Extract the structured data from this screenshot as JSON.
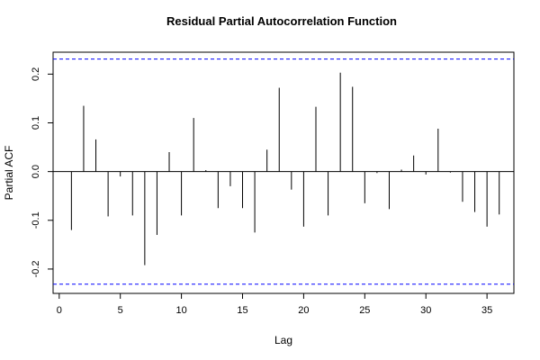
{
  "chart_data": {
    "type": "bar",
    "title": "Residual Partial Autocorrelation Function",
    "xlabel": "Lag",
    "ylabel": "Partial ACF",
    "xlim": [
      -0.5,
      37.2
    ],
    "ylim": [
      -0.25,
      0.245
    ],
    "xticks": [
      0,
      5,
      10,
      15,
      20,
      25,
      30,
      35
    ],
    "yticks": [
      -0.2,
      -0.1,
      0.0,
      0.1,
      0.2
    ],
    "ytick_labels": [
      "-0.2",
      "-0.1",
      "0.0",
      "0.1",
      "0.2"
    ],
    "confidence_bound": 0.231,
    "confidence_color": "#0000ff",
    "grid": false,
    "lags": [
      1,
      2,
      3,
      4,
      5,
      6,
      7,
      8,
      9,
      10,
      11,
      12,
      13,
      14,
      15,
      16,
      17,
      18,
      19,
      20,
      21,
      22,
      23,
      24,
      25,
      26,
      27,
      28,
      29,
      30,
      31,
      32,
      33,
      34,
      35,
      36
    ],
    "values": [
      -0.12,
      0.135,
      0.066,
      -0.092,
      -0.01,
      -0.09,
      -0.192,
      -0.13,
      0.04,
      -0.09,
      0.11,
      0.003,
      -0.075,
      -0.03,
      -0.075,
      -0.125,
      0.045,
      0.172,
      -0.037,
      -0.113,
      0.133,
      -0.09,
      0.203,
      0.174,
      -0.065,
      -0.003,
      -0.077,
      0.004,
      0.033,
      -0.006,
      0.088,
      -0.002,
      -0.062,
      -0.083,
      -0.113,
      -0.088
    ]
  }
}
